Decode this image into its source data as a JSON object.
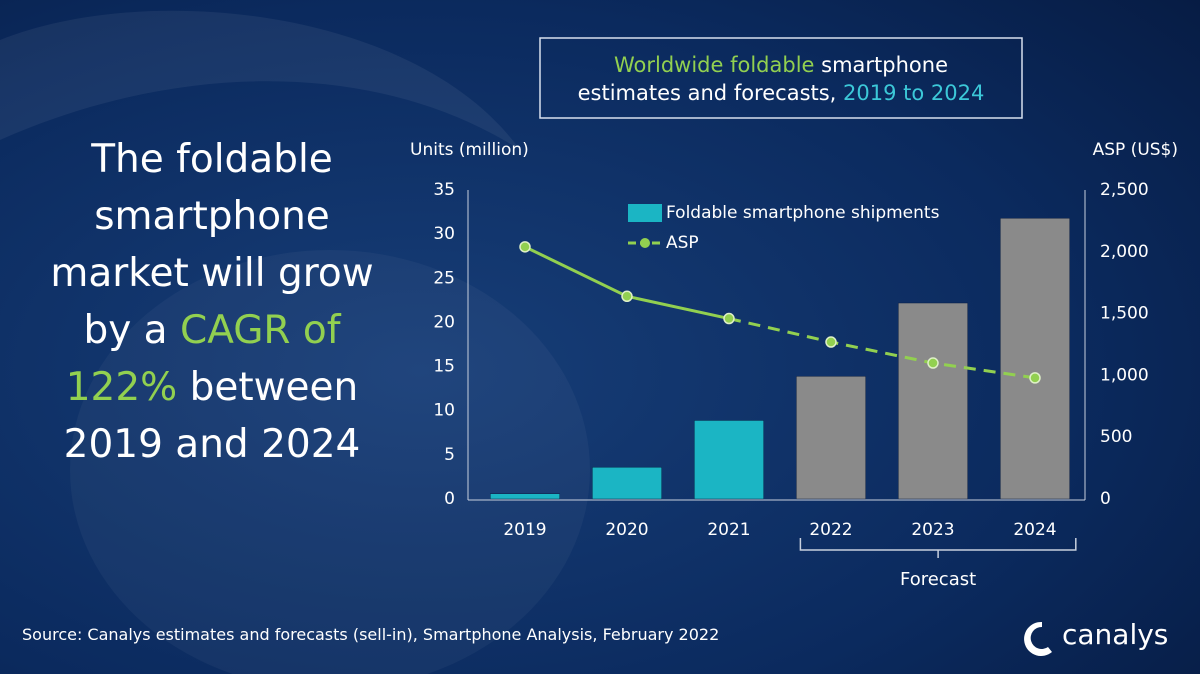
{
  "headline": {
    "lines": [
      [
        "The foldable"
      ],
      [
        "smartphone"
      ],
      [
        "market will grow"
      ],
      [
        "by a ",
        "CAGR of"
      ],
      [
        "122%",
        " between"
      ],
      [
        "2019 and 2024"
      ]
    ]
  },
  "source": "Source: Canalys estimates and forecasts (sell-in), Smartphone Analysis, February 2022",
  "brand": "canalys",
  "chart_data": {
    "type": "bar",
    "title": [
      "Worldwide foldable",
      " smartphone",
      "estimates and forecasts, ",
      "2019 to 2024"
    ],
    "y_label": "Units (million)",
    "y2_label": "ASP (US$)",
    "categories": [
      "2019",
      "2020",
      "2021",
      "2022",
      "2023",
      "2024"
    ],
    "series": [
      {
        "name": "Foldable smartphone shipments",
        "type": "bar",
        "color": "#1bb5c4",
        "forecast_color": "#8a8a8a",
        "values": [
          0.6,
          3.6,
          8.9,
          13.9,
          22.2,
          31.8
        ]
      },
      {
        "name": "ASP",
        "type": "line",
        "axis": "y2",
        "color": "#92d050",
        "values": [
          2040,
          1640,
          1460,
          1270,
          1100,
          980
        ]
      }
    ],
    "forecast": {
      "label": "Forecast",
      "from": "2022"
    },
    "ylim": [
      0,
      35
    ],
    "yticks": [
      0,
      5,
      10,
      15,
      20,
      25,
      30,
      35
    ],
    "y2lim": [
      0,
      2500
    ],
    "y2ticks": [
      0,
      500,
      {
        "value": 1000,
        "label": "1,000"
      },
      {
        "value": 1500,
        "label": "1,500"
      },
      {
        "value": 2000,
        "label": "2,000"
      },
      {
        "value": 2500,
        "label": "2,500"
      }
    ],
    "grid": false,
    "legend": "top"
  }
}
